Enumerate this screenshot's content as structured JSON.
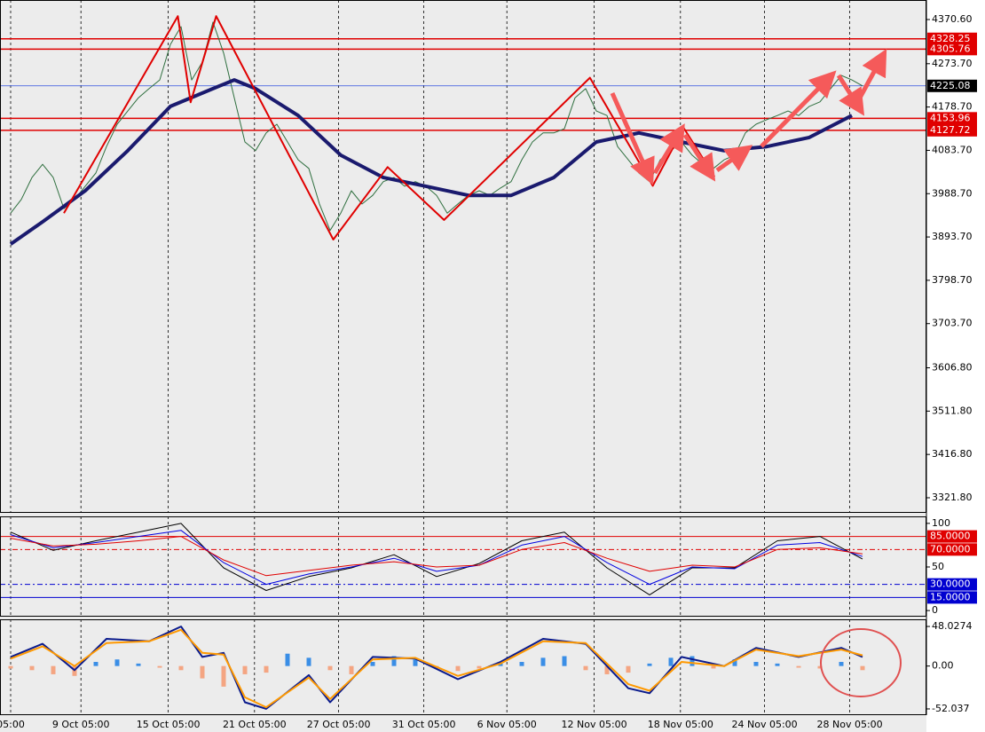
{
  "chart_data": [
    {
      "type": "line",
      "xlim": [
        -1,
        86
      ],
      "ylim": [
        3288.7,
        4413.4
      ],
      "yticks": [
        {
          "value": 4370.6,
          "label": "4370.60"
        },
        {
          "value": 4273.7,
          "label": "4273.70"
        },
        {
          "value": 4178.7,
          "label": "4178.70"
        },
        {
          "value": 4083.7,
          "label": "4083.70"
        },
        {
          "value": 3988.7,
          "label": "3988.70"
        },
        {
          "value": 3893.7,
          "label": "3893.70"
        },
        {
          "value": 3798.7,
          "label": "3798.70"
        },
        {
          "value": 3703.7,
          "label": "3703.70"
        },
        {
          "value": 3606.8,
          "label": "3606.80"
        },
        {
          "value": 3511.8,
          "label": "3511.80"
        },
        {
          "value": 3416.8,
          "label": "3416.80"
        },
        {
          "value": 3321.8,
          "label": "3321.80"
        }
      ],
      "levels": [
        {
          "value": 4328.25,
          "color": "#e00000"
        },
        {
          "value": 4305.76,
          "color": "#e00000"
        },
        {
          "value": 4153.96,
          "color": "#e00000"
        },
        {
          "value": 4127.72,
          "color": "#e00000"
        }
      ],
      "current_price": 4225.08,
      "series": [
        {
          "color": "#2f6f3f",
          "style": "thin",
          "values": [
            3946,
            3976,
            4024,
            4053,
            4024,
            3956,
            3976,
            4005,
            4034,
            4092,
            4141,
            4170,
            4199,
            4219,
            4238,
            4316,
            4355,
            4238,
            4277,
            4365,
            4297,
            4199,
            4102,
            4083,
            4122,
            4141,
            4102,
            4063,
            4044,
            3966,
            3908,
            3946,
            3995,
            3966,
            3985,
            4015,
            4024,
            4005,
            4015,
            4005,
            3985,
            3946,
            3966,
            3985,
            3995,
            3985,
            4001,
            4015,
            4063,
            4102,
            4122,
            4122,
            4131,
            4199,
            4219,
            4170,
            4160,
            4092,
            4063,
            4034,
            4015,
            4063,
            4083,
            4102,
            4073,
            4053,
            4044,
            4063,
            4073,
            4122,
            4141,
            4151,
            4160,
            4170,
            4160,
            4180,
            4190,
            4219,
            4248,
            4238,
            4225
          ]
        },
        {
          "color": "#1a1a6e",
          "style": "bold",
          "x": [
            0,
            3,
            7,
            11,
            15,
            19,
            21,
            23,
            27,
            31,
            35,
            39,
            43,
            47,
            51,
            55,
            59,
            63,
            67,
            71,
            75,
            79
          ],
          "values": [
            3878,
            3927,
            3995,
            4083,
            4180,
            4219,
            4238,
            4219,
            4160,
            4073,
            4024,
            4005,
            3985,
            3985,
            4024,
            4102,
            4122,
            4102,
            4083,
            4092,
            4112,
            4160
          ]
        },
        {
          "color": "#e00000",
          "style": "medium",
          "x": [
            5,
            15.7,
            16.9,
            19.3,
            30.3,
            35.4,
            40.7,
            54.4,
            60.3,
            63.2,
            66.1
          ],
          "values": [
            3946,
            4378,
            4189,
            4378,
            3888,
            4047,
            3931,
            4243,
            4006,
            4133,
            4026
          ]
        }
      ]
    },
    {
      "type": "line",
      "xlim": [
        -1,
        86
      ],
      "ylim": [
        -7,
        108
      ],
      "yticks": [
        100,
        50,
        0
      ],
      "levels": [
        {
          "value": 85,
          "label": "85.0000",
          "color": "#e00000",
          "dash": false
        },
        {
          "value": 70,
          "label": "70.0000",
          "color": "#e00000",
          "dash": true
        },
        {
          "value": 30,
          "label": "30.0000",
          "color": "#0000d0",
          "dash": true
        },
        {
          "value": 15,
          "label": "15.0000",
          "color": "#0000d0",
          "dash": false
        }
      ],
      "series": [
        {
          "color": "#000000",
          "style": "thin",
          "x": [
            0,
            4,
            8,
            12,
            16,
            20,
            24,
            28,
            32,
            36,
            40,
            44,
            48,
            52,
            56,
            60,
            64,
            68,
            72,
            76,
            80
          ],
          "values": [
            90,
            69,
            80,
            90,
            100,
            49,
            23,
            39,
            49,
            64,
            39,
            54,
            80,
            90,
            49,
            18,
            49,
            49,
            80,
            85,
            59
          ]
        },
        {
          "color": "#0000e0",
          "style": "thin",
          "x": [
            0,
            4,
            8,
            12,
            16,
            20,
            24,
            28,
            32,
            36,
            40,
            44,
            48,
            52,
            56,
            60,
            64,
            68,
            72,
            76,
            80
          ],
          "values": [
            87,
            72,
            78,
            85,
            92,
            55,
            30,
            42,
            50,
            60,
            45,
            52,
            75,
            85,
            55,
            30,
            50,
            48,
            75,
            78,
            62
          ]
        },
        {
          "color": "#e00000",
          "style": "thin",
          "x": [
            0,
            4,
            8,
            12,
            16,
            20,
            24,
            28,
            32,
            36,
            40,
            44,
            48,
            52,
            56,
            60,
            64,
            68,
            72,
            76,
            80
          ],
          "values": [
            83,
            74,
            76,
            80,
            85,
            58,
            40,
            46,
            52,
            56,
            50,
            52,
            70,
            78,
            60,
            45,
            52,
            50,
            70,
            72,
            65
          ]
        }
      ]
    },
    {
      "type": "bar",
      "xlim": [
        -1,
        86
      ],
      "ylim": [
        -59.6,
        56.7
      ],
      "yticks": [
        48.0274,
        {
          "value": 0,
          "label": "0.00"
        },
        -52.037
      ],
      "xticks": [
        {
          "value": 0,
          "label": "05:00"
        },
        {
          "value": 6.6,
          "label": "9 Oct 05:00"
        },
        {
          "value": 14.8,
          "label": "15 Oct 05:00"
        },
        {
          "value": 22.9,
          "label": "21 Oct 05:00"
        },
        {
          "value": 30.8,
          "label": "27 Oct 05:00"
        },
        {
          "value": 38.8,
          "label": "31 Oct 05:00"
        },
        {
          "value": 46.6,
          "label": "6 Nov 05:00"
        },
        {
          "value": 54.8,
          "label": "12 Nov 05:00"
        },
        {
          "value": 62.9,
          "label": "18 Nov 05:00"
        },
        {
          "value": 70.8,
          "label": "24 Nov 05:00"
        },
        {
          "value": 78.8,
          "label": "28 Nov 05:00"
        }
      ],
      "series": [
        {
          "type": "bar",
          "color": "#3a8ee6",
          "negative_color": "#f4a582",
          "x": [
            0,
            2,
            4,
            6,
            8,
            10,
            12,
            14,
            16,
            18,
            20,
            22,
            24,
            26,
            28,
            30,
            32,
            34,
            36,
            38,
            40,
            42,
            44,
            46,
            48,
            50,
            52,
            54,
            56,
            58,
            60,
            62,
            64,
            66,
            68,
            70,
            72,
            74,
            76,
            78,
            80
          ],
          "values": [
            -3,
            -5,
            -10,
            -12,
            5,
            8,
            3,
            -2,
            -5,
            -15,
            -25,
            -10,
            -8,
            15,
            10,
            -5,
            -10,
            5,
            12,
            8,
            -3,
            -6,
            -3,
            3,
            5,
            10,
            12,
            -5,
            -10,
            -8,
            3,
            10,
            12,
            -3,
            8,
            5,
            3,
            -2,
            -3,
            5,
            -5
          ]
        },
        {
          "type": "line",
          "color": "#0a1a8c",
          "style": "medium",
          "x": [
            0,
            3,
            6,
            9,
            13,
            16,
            18,
            20,
            22,
            24,
            28,
            30,
            34,
            38,
            42,
            46,
            50,
            54,
            58,
            60,
            63,
            67,
            70,
            74,
            78,
            80
          ],
          "values": [
            11,
            27,
            -5,
            33,
            30,
            48,
            11,
            16,
            -44,
            -52,
            -11,
            -44,
            11,
            9,
            -16,
            5,
            33,
            27,
            -27,
            -33,
            11,
            0,
            22,
            11,
            22,
            11
          ]
        },
        {
          "type": "line",
          "color": "#ff9900",
          "style": "medium",
          "x": [
            0,
            3,
            6,
            9,
            13,
            16,
            18,
            20,
            22,
            24,
            28,
            30,
            34,
            38,
            42,
            46,
            50,
            54,
            58,
            60,
            63,
            67,
            70,
            74,
            78,
            80
          ],
          "values": [
            9,
            24,
            0,
            28,
            30,
            44,
            16,
            14,
            -38,
            -50,
            -14,
            -40,
            8,
            10,
            -12,
            3,
            30,
            28,
            -22,
            -30,
            5,
            0,
            20,
            12,
            20,
            13
          ]
        }
      ]
    }
  ]
}
